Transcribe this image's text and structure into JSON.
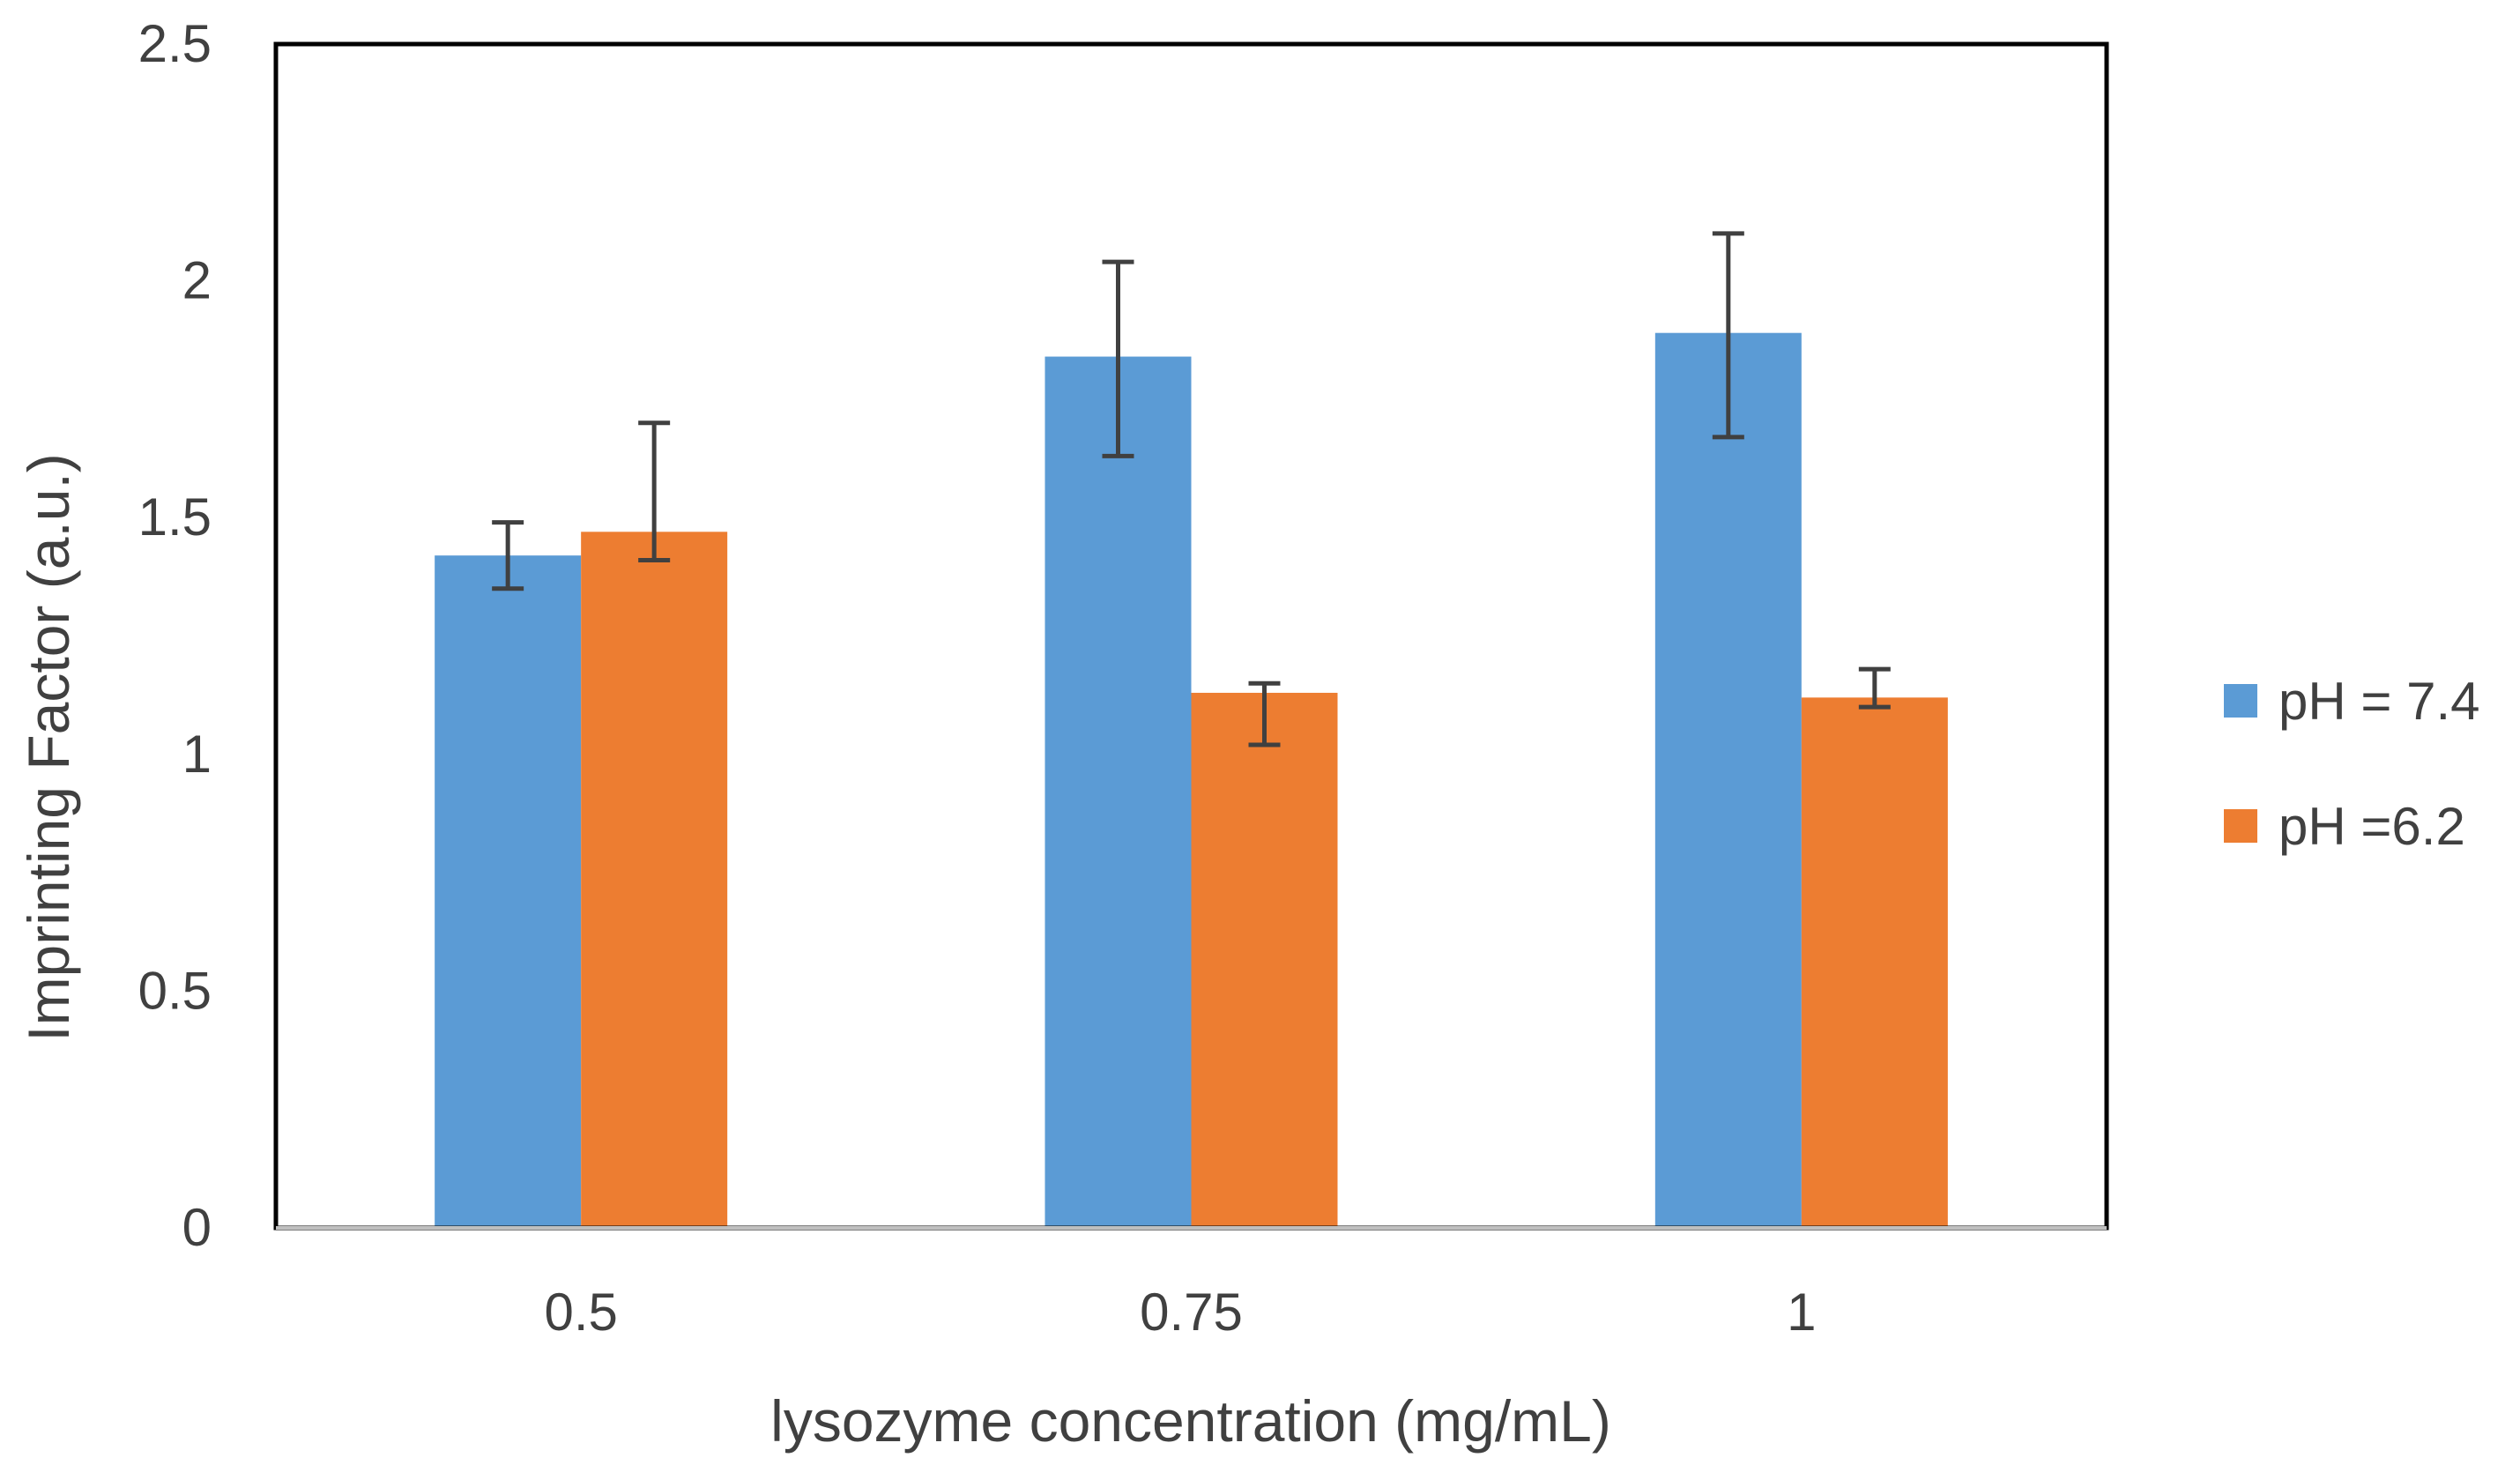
{
  "chart_data": {
    "type": "bar",
    "title": "",
    "xlabel": "lysozyme concentration (mg/mL)",
    "ylabel": "Imprinting Factor (a.u.)",
    "categories": [
      "0.5",
      "0.75",
      "1"
    ],
    "ylim": [
      0,
      2.5
    ],
    "yticks": [
      "0",
      "0.5",
      "1",
      "1.5",
      "2",
      "2.5"
    ],
    "grid": false,
    "legend_position": "right",
    "series": [
      {
        "name": "pH = 7.4",
        "color": "#5b9bd5",
        "values": [
          1.42,
          1.84,
          1.89
        ],
        "error_low": [
          1.35,
          1.63,
          1.67
        ],
        "error_high": [
          1.49,
          2.04,
          2.1
        ]
      },
      {
        "name": "pH =6.2",
        "color": "#ed7d31",
        "values": [
          1.47,
          1.13,
          1.12
        ],
        "error_low": [
          1.41,
          1.02,
          1.1
        ],
        "error_high": [
          1.7,
          1.15,
          1.18
        ]
      }
    ],
    "error_bar_color": "#404040"
  }
}
